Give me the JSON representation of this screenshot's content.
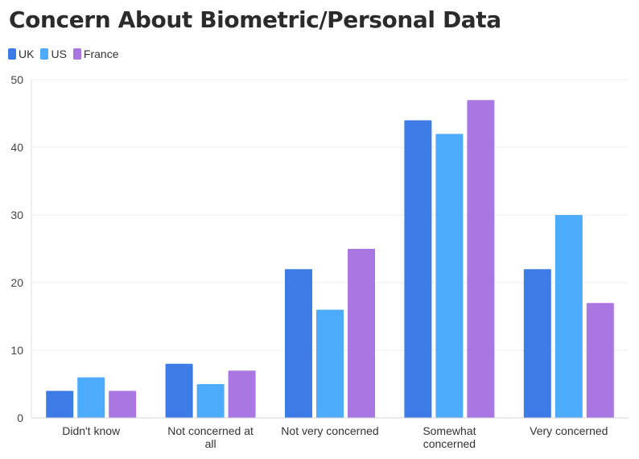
{
  "chart_data": {
    "type": "bar",
    "title": "Concern About Biometric/Personal Data",
    "categories": [
      [
        "Didn't know"
      ],
      [
        "Not concerned at",
        "all"
      ],
      [
        "Not very concerned"
      ],
      [
        "Somewhat",
        "concerned"
      ],
      [
        "Very concerned"
      ]
    ],
    "series": [
      {
        "name": "UK",
        "color": "#3d7be6",
        "values": [
          4,
          8,
          22,
          44,
          22
        ]
      },
      {
        "name": "US",
        "color": "#4dabfc",
        "values": [
          6,
          5,
          16,
          42,
          30
        ]
      },
      {
        "name": "France",
        "color": "#a976e2",
        "values": [
          4,
          7,
          25,
          47,
          17
        ]
      }
    ],
    "ylim": [
      0,
      50
    ],
    "yticks": [
      "0",
      "10",
      "20",
      "30",
      "40",
      "50"
    ],
    "xlabel": "",
    "ylabel": "",
    "grid": true,
    "legend_position": "top-left"
  }
}
